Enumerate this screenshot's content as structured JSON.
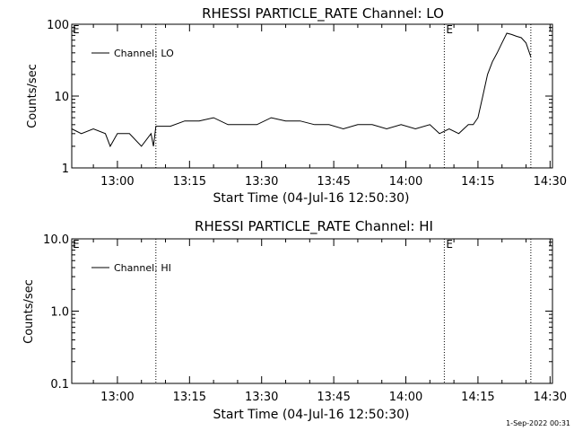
{
  "footer": {
    "timestamp": "1-Sep-2022 00:31"
  },
  "chart_data": [
    {
      "type": "line",
      "title": "RHESSI PARTICLE_RATE Channel: LO",
      "xlabel": "Start Time (04-Jul-16 12:50:30)",
      "ylabel": "Counts/sec",
      "yscale": "log",
      "ylim": [
        1,
        100
      ],
      "xlim": [
        "12:50:30",
        "14:30:30"
      ],
      "x_ticks": [
        "13:00",
        "13:15",
        "13:30",
        "13:45",
        "14:00",
        "14:15",
        "14:30"
      ],
      "y_ticks": [
        "1",
        "10",
        "100"
      ],
      "legend": {
        "position": "top-left",
        "entries": [
          "Channel: LO"
        ]
      },
      "markers": [
        {
          "time": "13:08:00",
          "label": ""
        },
        {
          "time": "14:08:00",
          "label": "E"
        },
        {
          "time": "14:26:00",
          "label": ""
        }
      ],
      "corner_label": "E",
      "series": [
        {
          "name": "Channel: LO",
          "x": [
            "12:50:30",
            "12:52:30",
            "12:55:00",
            "12:57:30",
            "12:58:30",
            "13:00:00",
            "13:02:30",
            "13:05:00",
            "13:07:00",
            "13:07:30",
            "13:08:00",
            "13:11:00",
            "13:14:00",
            "13:17:00",
            "13:20:00",
            "13:23:00",
            "13:26:00",
            "13:29:00",
            "13:32:00",
            "13:35:00",
            "13:38:00",
            "13:41:00",
            "13:44:00",
            "13:47:00",
            "13:50:00",
            "13:53:00",
            "13:56:00",
            "13:59:00",
            "14:02:00",
            "14:05:00",
            "14:07:00",
            "14:09:00",
            "14:11:00",
            "14:13:00",
            "14:14:00",
            "14:15:00",
            "14:16:00",
            "14:17:00",
            "14:18:00",
            "14:19:00",
            "14:20:00",
            "14:21:00",
            "14:22:00",
            "14:23:00",
            "14:24:00",
            "14:25:00",
            "14:26:00"
          ],
          "y": [
            3.5,
            3,
            3.5,
            3,
            2,
            3,
            3,
            2,
            3,
            2,
            3.8,
            3.8,
            4.5,
            4.5,
            5,
            4,
            4,
            4,
            5,
            4.5,
            4.5,
            4,
            4,
            3.5,
            4,
            4,
            3.5,
            4,
            3.5,
            4,
            3,
            3.5,
            3,
            4,
            4,
            5,
            10,
            20,
            30,
            40,
            55,
            75,
            72,
            68,
            65,
            55,
            35
          ]
        }
      ]
    },
    {
      "type": "line",
      "title": "RHESSI PARTICLE_RATE Channel: HI",
      "xlabel": "Start Time (04-Jul-16 12:50:30)",
      "ylabel": "Counts/sec",
      "yscale": "log",
      "ylim": [
        0.1,
        10
      ],
      "xlim": [
        "12:50:30",
        "14:30:30"
      ],
      "x_ticks": [
        "13:00",
        "13:15",
        "13:30",
        "13:45",
        "14:00",
        "14:15",
        "14:30"
      ],
      "y_ticks": [
        "0.1",
        "1.0",
        "10.0"
      ],
      "legend": {
        "position": "top-left",
        "entries": [
          "Channel: HI"
        ]
      },
      "markers": [
        {
          "time": "13:08:00",
          "label": ""
        },
        {
          "time": "14:08:00",
          "label": "E"
        },
        {
          "time": "14:26:00",
          "label": ""
        }
      ],
      "corner_label": "E",
      "series": [
        {
          "name": "Channel: HI",
          "x": [],
          "y": []
        }
      ]
    }
  ]
}
